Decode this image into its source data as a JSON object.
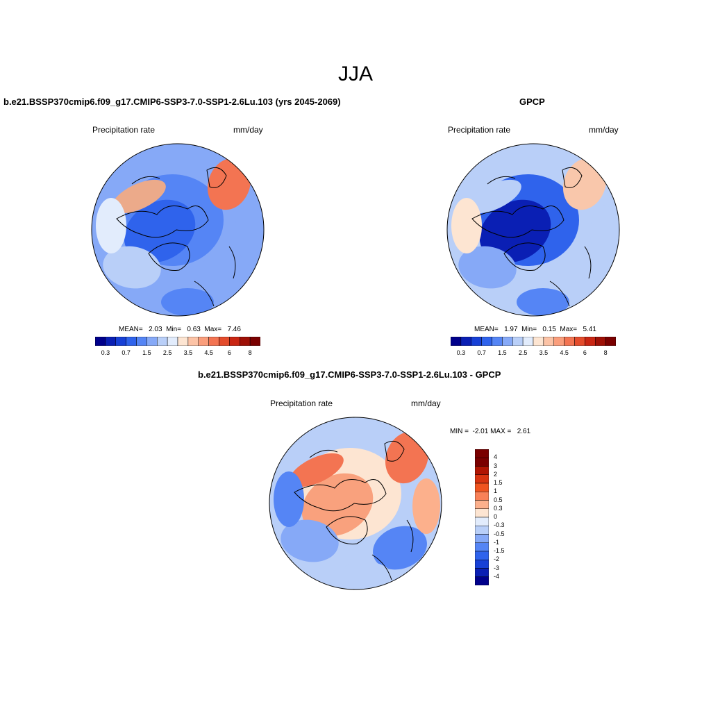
{
  "title": "JJA",
  "panels": [
    {
      "title": "b.e21.BSSP370cmip6.f09_g17.CMIP6-SSP3-7.0-SSP1-2.6Lu.103 (yrs 2045-2069)",
      "left_label": "Precipitation rate",
      "right_label": "mm/day",
      "stats": "MEAN=   2.03  Min=   0.63  Max=   7.46",
      "colorbar_ticks": [
        "0.3",
        "0.7",
        "1.5",
        "2.5",
        "3.5",
        "4.5",
        "6",
        "8"
      ]
    },
    {
      "title": "GPCP",
      "left_label": "Precipitation rate",
      "right_label": "mm/day",
      "stats": "MEAN=   1.97  Min=   0.15  Max=   5.41",
      "colorbar_ticks": [
        "0.3",
        "0.7",
        "1.5",
        "2.5",
        "3.5",
        "4.5",
        "6",
        "8"
      ]
    },
    {
      "title": "b.e21.BSSP370cmip6.f09_g17.CMIP6-SSP3-7.0-SSP1-2.6Lu.103 - GPCP",
      "left_label": "Precipitation rate",
      "right_label": "mm/day",
      "stats": "MIN =  -2.01 MAX =   2.61",
      "colorbar_ticks": [
        "4",
        "3",
        "2",
        "1.5",
        "1",
        "0.5",
        "0.3",
        "0",
        "-0.3",
        "-0.5",
        "-1",
        "-1.5",
        "-2",
        "-3",
        "-4"
      ]
    }
  ],
  "colors": {
    "abs_scale": [
      "#00008b",
      "#0a1fb4",
      "#1740d6",
      "#2f63ec",
      "#5585f5",
      "#86a9f7",
      "#b9cff8",
      "#e2ecfc",
      "#fde5d2",
      "#fcc3a6",
      "#fa9e7c",
      "#f37452",
      "#e44c2c",
      "#c92613",
      "#9e1006",
      "#7a0000"
    ],
    "diff_scale": [
      "#7a0000",
      "#b01503",
      "#d83410",
      "#f0541f",
      "#f98157",
      "#fcb08c",
      "#fde5d2",
      "#e2ecfc",
      "#b9cff8",
      "#86a9f7",
      "#5585f5",
      "#2f63ec",
      "#1740d6",
      "#0a1fb4",
      "#00008b"
    ]
  }
}
